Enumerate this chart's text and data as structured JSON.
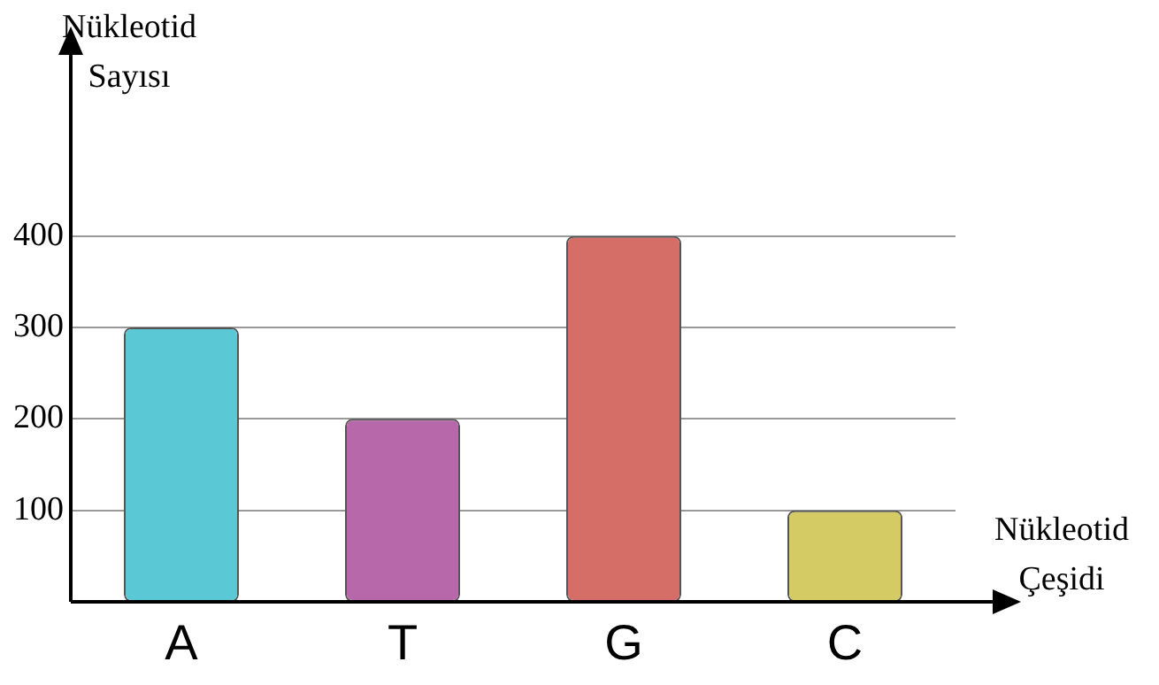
{
  "chart_data": {
    "type": "bar",
    "xlabel": "Nükleotid Çeşidi",
    "ylabel": "Nükleotid Sayısı",
    "categories": [
      "A",
      "T",
      "G",
      "C"
    ],
    "values": [
      300,
      200,
      400,
      100
    ],
    "colors": [
      "#5bc8d6",
      "#b768ab",
      "#d46e66",
      "#d4cb64"
    ],
    "ylim": [
      0,
      600
    ],
    "yticks": [
      100,
      200,
      300,
      400
    ],
    "grid": "y",
    "legend": false
  }
}
